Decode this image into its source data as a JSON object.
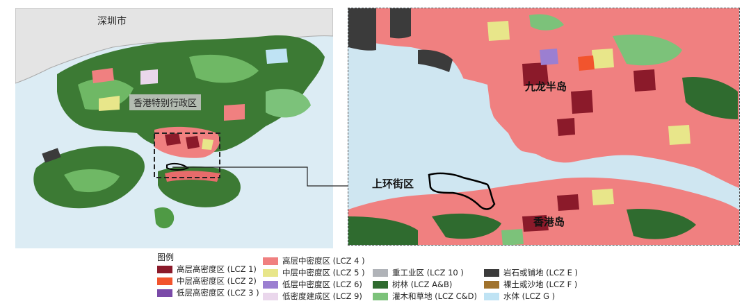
{
  "overview": {
    "city_label": "深圳市",
    "region_label": "香港特别行政区"
  },
  "detail": {
    "kowloon_label": "九龙半岛",
    "sheungwan_label": "上环街区",
    "hkisland_label": "香港岛"
  },
  "legend": {
    "title": "图例",
    "items": [
      {
        "label": "高层高密度区 (LCZ 1)",
        "color": "#8b1a2a"
      },
      {
        "label": "中层高密度区 (LCZ 2)",
        "color": "#f2542d"
      },
      {
        "label": "低层高密度区 (LCZ 3 )",
        "color": "#7a4aa8"
      },
      {
        "label": "高层中密度区 (LCZ 4 )",
        "color": "#f08080"
      },
      {
        "label": "中层中密度区 (LCZ 5 )",
        "color": "#e8e68a"
      },
      {
        "label": "低层中密度区 (LCZ 6)",
        "color": "#9b7fd1"
      },
      {
        "label": "低密度建成区 (LCZ 9)",
        "color": "#ead7ec"
      },
      {
        "label": "重工业区 (LCZ 10 )",
        "color": "#b0b3b8"
      },
      {
        "label": "树林 (LCZ A&B)",
        "color": "#2f6b2f"
      },
      {
        "label": "灌木和草地 (LCZ C&D)",
        "color": "#7cc27a"
      },
      {
        "label": "岩石或铺地 (LCZ E )",
        "color": "#3b3b3b"
      },
      {
        "label": "裸土或沙地 (LCZ F )",
        "color": "#a0722c"
      },
      {
        "label": "水体 (LCZ G )",
        "color": "#bfe3f4"
      }
    ]
  }
}
